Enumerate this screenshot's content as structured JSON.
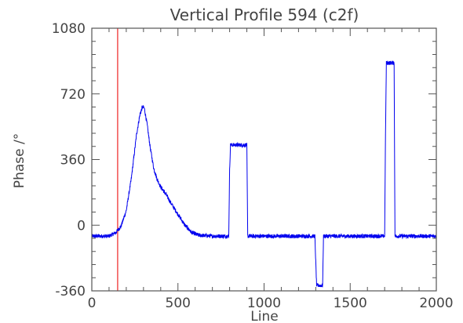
{
  "chart_data": {
    "type": "line",
    "title": "Vertical Profile 594 (c2f)",
    "xlabel": "Line",
    "ylabel": "Phase /°",
    "xlim": [
      0,
      2000
    ],
    "ylim": [
      -360,
      1080
    ],
    "x_ticks": [
      0,
      500,
      1000,
      1500,
      2000
    ],
    "y_ticks": [
      -360,
      0,
      360,
      720,
      1080
    ],
    "x_tick_labels": [
      "0",
      "500",
      "1000",
      "1500",
      "2000"
    ],
    "y_tick_labels": [
      "-360",
      "0",
      "360",
      "720",
      "1080"
    ],
    "grid": false,
    "colors": {
      "series": "#0000ee",
      "marker": "#ee2222",
      "axes": "#555555"
    },
    "vertical_marker_x": 150,
    "series": [
      {
        "x": [
          0,
          100,
          140,
          170,
          200,
          230,
          260,
          280,
          295,
          305,
          320,
          340,
          360,
          380,
          400,
          430,
          460,
          500,
          540,
          580,
          620,
          700,
          795,
          800,
          805,
          900,
          905,
          1000,
          1100,
          1200,
          1295,
          1300,
          1305,
          1340,
          1345,
          1400,
          1500,
          1600,
          1700,
          1705,
          1710,
          1755,
          1760,
          1800,
          1900,
          2000
        ],
        "y": [
          -60,
          -60,
          -40,
          -5,
          80,
          260,
          500,
          610,
          650,
          640,
          560,
          420,
          310,
          250,
          210,
          170,
          120,
          60,
          0,
          -40,
          -55,
          -60,
          -60,
          300,
          440,
          440,
          -60,
          -60,
          -60,
          -60,
          -60,
          -200,
          -330,
          -330,
          -60,
          -60,
          -60,
          -60,
          -60,
          500,
          890,
          890,
          -60,
          -60,
          -60,
          -60
        ]
      }
    ]
  }
}
